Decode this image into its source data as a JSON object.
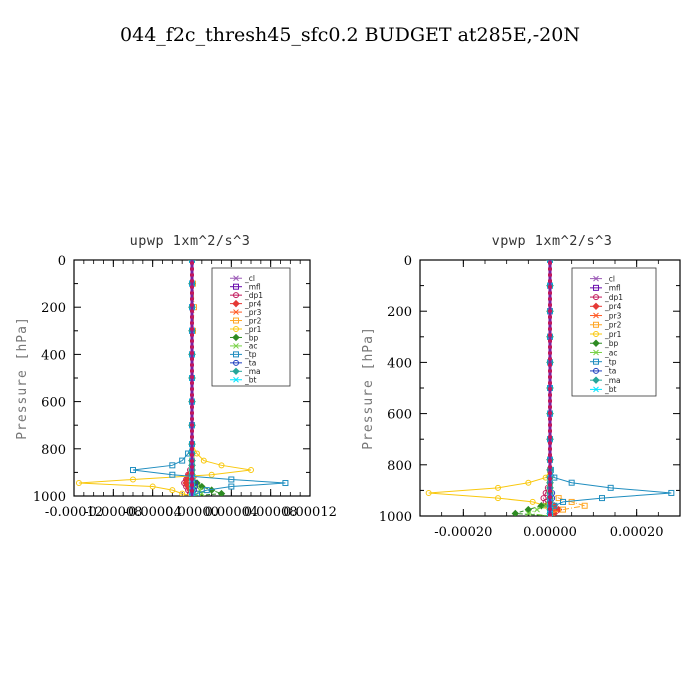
{
  "figure": {
    "title": "044_f2c_thresh45_sfc0.2  BUDGET at285E,-20N",
    "background": "#ffffff"
  },
  "chart_data": [
    {
      "type": "line",
      "title": "upwp  1xm^2/s^3",
      "xlabel": "",
      "ylabel": "Pressure [hPa]",
      "xlim": [
        -0.00012,
        0.00012
      ],
      "ylim": [
        1000,
        0
      ],
      "xtick_labels": [
        "-0.00012",
        "-0.00008",
        "-0.00004",
        "0.00000",
        "0.00004",
        "0.00008",
        "0.00012"
      ],
      "xticks": [
        -0.00012,
        -8e-05,
        -4e-05,
        0.0,
        4e-05,
        8e-05,
        0.00012
      ],
      "ytick_labels": [
        "0",
        "200",
        "400",
        "600",
        "800",
        "1000"
      ],
      "yticks": [
        0,
        200,
        400,
        600,
        800,
        1000
      ],
      "legend_position": "top-right",
      "grid": false,
      "y": [
        0,
        100,
        200,
        300,
        400,
        500,
        600,
        700,
        780,
        820,
        850,
        870,
        890,
        910,
        930,
        945,
        960,
        975,
        990,
        1000
      ],
      "series": [
        {
          "name": "_cl",
          "color": "#9b59b6",
          "values": [
            0,
            0,
            0,
            0,
            0,
            0,
            0,
            0,
            0,
            0,
            0,
            0,
            0,
            0,
            0,
            0,
            0,
            0,
            0,
            0
          ]
        },
        {
          "name": "_mfl",
          "color": "#6a0dad",
          "values": [
            0,
            0,
            0,
            0,
            0,
            0,
            0,
            0,
            0,
            0,
            0,
            0,
            0,
            0,
            0,
            0,
            0,
            0,
            0,
            0
          ]
        },
        {
          "name": "_dp1",
          "color": "#c2185b",
          "values": [
            0,
            0,
            0,
            0,
            0,
            0,
            0,
            0,
            0,
            0,
            0,
            0,
            -2e-06,
            -4e-06,
            -6e-06,
            -8e-06,
            -6e-06,
            -4e-06,
            -2e-06,
            0
          ]
        },
        {
          "name": "_pr4",
          "color": "#e53935",
          "values": [
            0,
            0,
            0,
            0,
            0,
            0,
            0,
            0,
            0,
            0,
            0,
            0,
            0,
            -3e-06,
            -5e-06,
            -6e-06,
            -4e-06,
            -2e-06,
            0,
            0
          ]
        },
        {
          "name": "_pr3",
          "color": "#ff5722",
          "values": [
            0,
            0,
            0,
            0,
            0,
            0,
            0,
            0,
            0,
            0,
            0,
            0,
            0,
            0,
            2e-06,
            3e-06,
            2e-06,
            1e-06,
            0,
            0
          ]
        },
        {
          "name": "_pr2",
          "color": "#ffa726",
          "values": [
            0,
            1e-06,
            2e-06,
            1e-06,
            0,
            0,
            0,
            0,
            0,
            0,
            0,
            0,
            0,
            0,
            0,
            0,
            0,
            0,
            0,
            0
          ]
        },
        {
          "name": "_pr1",
          "color": "#f9c80e",
          "values": [
            0,
            0,
            0,
            0,
            0,
            0,
            0,
            0,
            0,
            5e-06,
            1.2e-05,
            3e-05,
            6e-05,
            2e-05,
            -6e-05,
            -0.000115,
            -4e-05,
            -2e-05,
            -1e-05,
            0
          ]
        },
        {
          "name": "_bp",
          "color": "#2e8b22",
          "values": [
            0,
            0,
            0,
            0,
            0,
            0,
            0,
            0,
            0,
            0,
            0,
            0,
            0,
            0,
            0,
            5e-06,
            1e-05,
            2e-05,
            3e-05,
            0
          ]
        },
        {
          "name": "_ac",
          "color": "#76d143",
          "values": [
            0,
            0,
            0,
            0,
            0,
            0,
            0,
            0,
            0,
            0,
            0,
            0,
            0,
            0,
            0,
            0,
            5e-06,
            8e-06,
            1e-05,
            0
          ]
        },
        {
          "name": "_tp",
          "color": "#1f8dbf",
          "values": [
            0,
            0,
            0,
            0,
            0,
            0,
            0,
            0,
            0,
            -4e-06,
            -1e-05,
            -2e-05,
            -6e-05,
            -2e-05,
            4e-05,
            9.5e-05,
            4e-05,
            1.5e-05,
            5e-06,
            0
          ]
        },
        {
          "name": "_ta",
          "color": "#1e3fbf",
          "values": [
            0,
            0,
            0,
            0,
            0,
            0,
            0,
            0,
            0,
            0,
            0,
            0,
            0,
            0,
            0,
            3e-06,
            3e-06,
            2e-06,
            0,
            0
          ]
        },
        {
          "name": "_ma",
          "color": "#26a69a",
          "values": [
            0,
            0,
            0,
            0,
            0,
            0,
            0,
            0,
            0,
            0,
            0,
            0,
            0,
            0,
            0,
            0,
            0,
            0,
            0,
            0
          ]
        },
        {
          "name": "_bt",
          "color": "#00e5ff",
          "values": [
            0,
            0,
            0,
            0,
            0,
            0,
            0,
            0,
            0,
            0,
            0,
            0,
            0,
            0,
            0,
            0,
            0,
            0,
            0,
            0
          ]
        }
      ]
    },
    {
      "type": "line",
      "title": "vpwp  1xm^2/s^3",
      "xlabel": "",
      "ylabel": "Pressure [hPa]",
      "xlim": [
        -0.0003,
        0.0003
      ],
      "ylim": [
        1000,
        0
      ],
      "xtick_labels": [
        "-0.00020",
        "0.00000",
        "0.00020"
      ],
      "xticks": [
        -0.0002,
        0.0,
        0.0002
      ],
      "ytick_labels": [
        "0",
        "200",
        "400",
        "600",
        "800",
        "1000"
      ],
      "yticks": [
        0,
        200,
        400,
        600,
        800,
        1000
      ],
      "legend_position": "top-right",
      "grid": false,
      "y": [
        0,
        100,
        200,
        300,
        400,
        500,
        600,
        700,
        780,
        820,
        850,
        870,
        890,
        910,
        930,
        945,
        960,
        975,
        990,
        1000
      ],
      "series": [
        {
          "name": "_cl",
          "color": "#9b59b6",
          "values": [
            0,
            0,
            0,
            0,
            0,
            0,
            0,
            0,
            0,
            0,
            0,
            0,
            0,
            0,
            0,
            0,
            0,
            0,
            0,
            0
          ]
        },
        {
          "name": "_mfl",
          "color": "#6a0dad",
          "values": [
            0,
            0,
            0,
            0,
            0,
            0,
            0,
            0,
            0,
            0,
            0,
            0,
            0,
            0,
            0,
            0,
            0,
            0,
            0,
            0
          ]
        },
        {
          "name": "_dp1",
          "color": "#c2185b",
          "values": [
            0,
            0,
            0,
            0,
            0,
            0,
            0,
            0,
            0,
            0,
            0,
            0,
            -5e-06,
            -1e-05,
            -1.5e-05,
            -1e-05,
            -5e-06,
            0,
            0,
            0
          ]
        },
        {
          "name": "_pr4",
          "color": "#e53935",
          "values": [
            0,
            0,
            0,
            0,
            0,
            0,
            0,
            0,
            0,
            0,
            0,
            0,
            0,
            0,
            0,
            0,
            1e-05,
            2e-05,
            1e-05,
            0
          ]
        },
        {
          "name": "_pr3",
          "color": "#ff5722",
          "values": [
            0,
            0,
            0,
            0,
            0,
            0,
            0,
            0,
            0,
            0,
            0,
            0,
            0,
            0,
            0,
            0,
            5e-06,
            1e-05,
            5e-06,
            0
          ]
        },
        {
          "name": "_pr2",
          "color": "#ffa726",
          "values": [
            0,
            0,
            0,
            0,
            0,
            0,
            0,
            0,
            0,
            0,
            0,
            0,
            0,
            0,
            2e-05,
            5e-05,
            8e-05,
            3e-05,
            0,
            0
          ]
        },
        {
          "name": "_pr1",
          "color": "#f9c80e",
          "values": [
            0,
            0,
            0,
            0,
            0,
            0,
            0,
            0,
            0,
            0,
            -1e-05,
            -5e-05,
            -0.00012,
            -0.00028,
            -0.00012,
            -4e-05,
            -1e-05,
            0,
            0,
            0
          ]
        },
        {
          "name": "_bp",
          "color": "#2e8b22",
          "values": [
            0,
            0,
            0,
            0,
            0,
            0,
            0,
            0,
            0,
            0,
            0,
            0,
            0,
            0,
            0,
            0,
            -2e-05,
            -5e-05,
            -8e-05,
            0
          ]
        },
        {
          "name": "_ac",
          "color": "#76d143",
          "values": [
            0,
            0,
            0,
            0,
            0,
            0,
            0,
            0,
            0,
            0,
            0,
            0,
            0,
            0,
            0,
            0,
            -1e-05,
            -3e-05,
            -5e-05,
            0
          ]
        },
        {
          "name": "_tp",
          "color": "#1f8dbf",
          "values": [
            0,
            0,
            0,
            0,
            0,
            0,
            0,
            0,
            0,
            2e-06,
            1e-05,
            5e-05,
            0.00014,
            0.00028,
            0.00012,
            3e-05,
            1e-05,
            0,
            0,
            0
          ]
        },
        {
          "name": "_ta",
          "color": "#1e3fbf",
          "values": [
            0,
            0,
            0,
            0,
            0,
            0,
            0,
            0,
            0,
            0,
            0,
            0,
            0,
            5e-06,
            5e-06,
            0,
            0,
            0,
            0,
            0
          ]
        },
        {
          "name": "_ma",
          "color": "#26a69a",
          "values": [
            0,
            0,
            0,
            0,
            0,
            0,
            0,
            0,
            0,
            0,
            0,
            0,
            0,
            0,
            0,
            0,
            0,
            0,
            0,
            0
          ]
        },
        {
          "name": "_bt",
          "color": "#00e5ff",
          "values": [
            0,
            0,
            0,
            0,
            0,
            0,
            0,
            0,
            0,
            0,
            0,
            0,
            0,
            0,
            0,
            0,
            0,
            0,
            0,
            0
          ]
        }
      ]
    }
  ]
}
